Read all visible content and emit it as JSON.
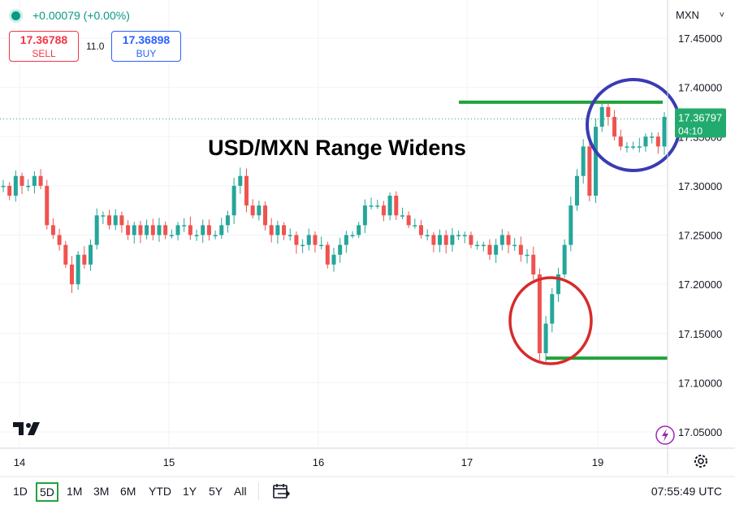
{
  "header": {
    "change": "+0.00079 (+0.00%)",
    "sell_price": "17.36788",
    "sell_label": "SELL",
    "spread": "11.0",
    "buy_price": "17.36898",
    "buy_label": "BUY",
    "symbol": "MXN",
    "symbol_chevron": "˅"
  },
  "chart_data": {
    "type": "line",
    "title": "USD/MXN Range Widens",
    "ylim": [
      17.04,
      17.47
    ],
    "yticks": [
      "17.45000",
      "17.40000",
      "17.35000",
      "17.30000",
      "17.25000",
      "17.20000",
      "17.15000",
      "17.10000",
      "17.05000"
    ],
    "ytick_values": [
      17.45,
      17.4,
      17.35,
      17.3,
      17.25,
      17.2,
      17.15,
      17.1,
      17.05
    ],
    "xticks": [
      "14",
      "15",
      "16",
      "17",
      "19"
    ],
    "current_price": "17.36797",
    "countdown": "04:10",
    "series": [
      {
        "values": [
          17.3,
          17.29,
          17.31,
          17.3,
          17.3,
          17.31,
          17.3,
          17.26,
          17.25,
          17.24,
          17.22,
          17.2,
          17.23,
          17.22,
          17.24,
          17.27,
          17.27,
          17.26,
          17.27,
          17.26,
          17.25,
          17.26,
          17.25,
          17.26,
          17.25,
          17.26,
          17.25,
          17.25,
          17.26,
          17.26,
          17.25,
          17.25,
          17.26,
          17.25,
          17.25,
          17.26,
          17.27,
          17.3,
          17.31,
          17.28,
          17.27,
          17.28,
          17.26,
          17.25,
          17.26,
          17.25,
          17.25,
          17.24,
          17.24,
          17.25,
          17.24,
          17.24,
          17.22,
          17.23,
          17.24,
          17.25,
          17.25,
          17.26,
          17.28,
          17.28,
          17.28,
          17.27,
          17.29,
          17.27,
          17.27,
          17.26,
          17.26,
          17.25,
          17.25,
          17.24,
          17.25,
          17.24,
          17.25,
          17.25,
          17.25,
          17.24,
          17.24,
          17.24,
          17.23,
          17.24,
          17.25,
          17.24,
          17.24,
          17.23,
          17.23,
          17.21,
          17.13,
          17.16,
          17.19,
          17.21,
          17.24,
          17.28,
          17.31,
          17.34,
          17.29,
          17.36,
          17.38,
          17.37,
          17.35,
          17.34,
          17.34,
          17.34,
          17.34,
          17.35,
          17.35,
          17.34,
          17.37
        ]
      }
    ],
    "lines": [
      {
        "label": "resistance",
        "value": 17.385,
        "color": "#21a33a"
      },
      {
        "label": "support",
        "value": 17.125,
        "color": "#21a33a"
      }
    ],
    "circles": [
      {
        "label": "top-circle",
        "color": "#3b3bb3"
      },
      {
        "label": "bottom-circle",
        "color": "#d82a2a"
      }
    ],
    "colors": {
      "up": "#26a69a",
      "down": "#ef5350",
      "badge": "#22ab6e"
    }
  },
  "footer": {
    "timeframes": [
      "1D",
      "5D",
      "1M",
      "3M",
      "6M",
      "YTD",
      "1Y",
      "5Y",
      "All"
    ],
    "active_timeframe": "5D",
    "clock": "07:55:49 UTC"
  }
}
